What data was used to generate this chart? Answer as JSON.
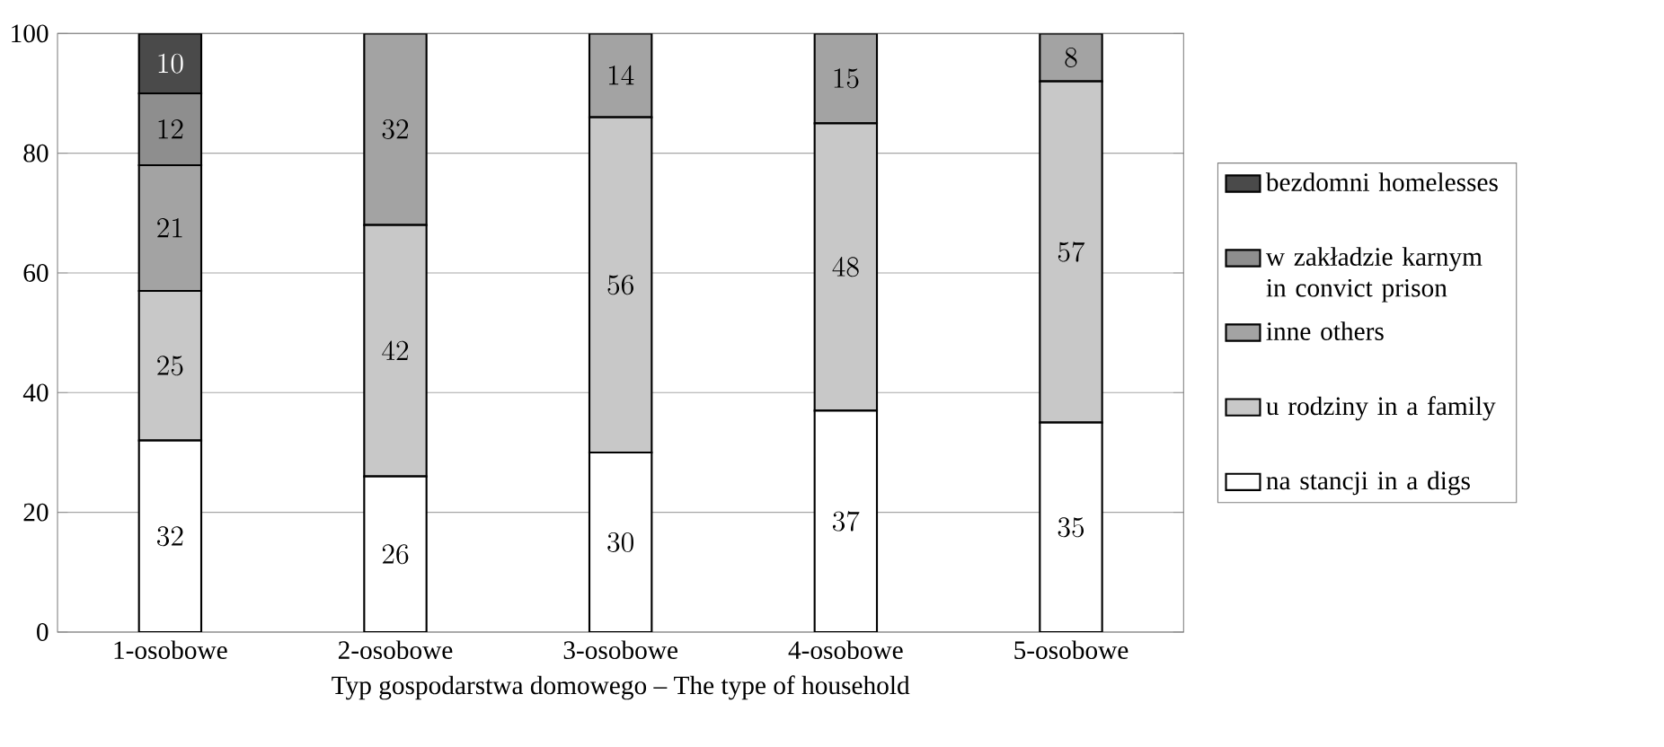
{
  "chart_data": {
    "type": "bar",
    "stacked": true,
    "xlabel": "Typ gospodarstwa domowego – The type of household",
    "categories": [
      "1-osobowe",
      "2-osobowe",
      "3-osobowe",
      "4-osobowe",
      "5-osobowe"
    ],
    "series": [
      {
        "name": "na stancji in a digs",
        "color": "#ffffff",
        "values": [
          32,
          26,
          30,
          37,
          35
        ]
      },
      {
        "name": "u rodziny in a family",
        "color": "#c8c8c8",
        "values": [
          25,
          42,
          56,
          48,
          57
        ]
      },
      {
        "name": "inne others",
        "color": "#a3a3a3",
        "values": [
          21,
          32,
          14,
          15,
          8
        ]
      },
      {
        "name": "w zakładzie karnym in convict prison",
        "color": "#8e8e8e",
        "values": [
          12,
          null,
          null,
          null,
          null
        ]
      },
      {
        "name": "bezdomni homelesses",
        "color": "#4a4a4a",
        "values": [
          10,
          null,
          null,
          null,
          null
        ]
      }
    ],
    "ylim": [
      0,
      100
    ],
    "yticks": [
      0,
      20,
      40,
      60,
      80,
      100
    ],
    "grid": "y",
    "legend": "right",
    "data_labels": true
  }
}
